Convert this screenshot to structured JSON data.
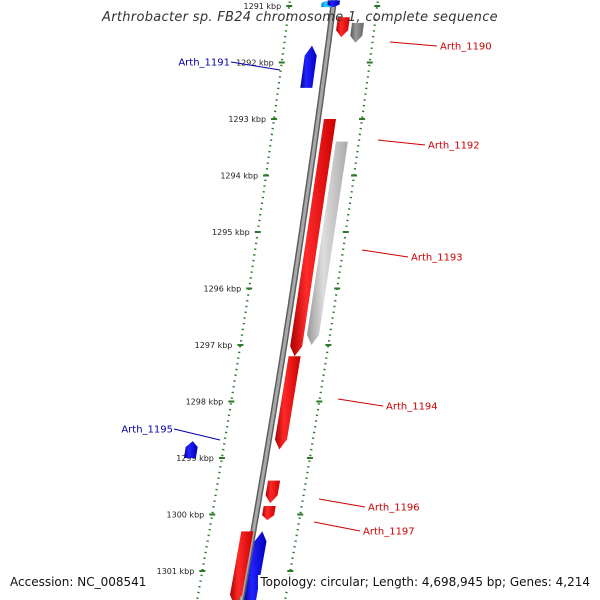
{
  "title": "Arthrobacter sp. FB24 chromosome 1, complete sequence",
  "accession": "Accession: NC_008541",
  "summary": "Topology: circular; Length: 4,698,945 bp; Genes: 4,214",
  "colors": {
    "forward": "#ee0000",
    "reverse": "#0000cc",
    "rna_light": "#bbbbbb",
    "rna_dark": "#777777",
    "tick": "#2a7a2a",
    "backbone": "#888888",
    "forward_label": "#cc0000",
    "reverse_label": "#0000aa"
  },
  "ruler": {
    "ticks": [
      {
        "kbp": 1291,
        "label": "1291 kbp"
      },
      {
        "kbp": 1292,
        "label": "1292 kbp"
      },
      {
        "kbp": 1293,
        "label": "1293 kbp"
      },
      {
        "kbp": 1294,
        "label": "1294 kbp"
      },
      {
        "kbp": 1295,
        "label": "1295 kbp"
      },
      {
        "kbp": 1296,
        "label": "1296 kbp"
      },
      {
        "kbp": 1297,
        "label": "1297 kbp"
      },
      {
        "kbp": 1298,
        "label": "1298 kbp"
      },
      {
        "kbp": 1299,
        "label": "1299 kbp"
      },
      {
        "kbp": 1300,
        "label": "1300 kbp"
      },
      {
        "kbp": 1301,
        "label": "1301 kbp"
      }
    ]
  },
  "genes": [
    {
      "id": "gene-cyan",
      "strand": "reverse",
      "start_kbp": 1290.9,
      "end_kbp": 1291.02,
      "color": "#00aaee",
      "label": ""
    },
    {
      "id": "gene-blue-top",
      "strand": "forward",
      "start_kbp": 1290.9,
      "end_kbp": 1291.02,
      "color": "#0000cc",
      "label": ""
    },
    {
      "id": "arth-1190",
      "strand": "forward",
      "start_kbp": 1291.2,
      "end_kbp": 1291.55,
      "color": "#ee0000",
      "label": "Arth_1190"
    },
    {
      "id": "gene-grey-1",
      "strand": "rna",
      "start_kbp": 1291.3,
      "end_kbp": 1291.65,
      "color": "#777777",
      "label": ""
    },
    {
      "id": "arth-1191",
      "strand": "reverse",
      "start_kbp": 1291.7,
      "end_kbp": 1292.45,
      "color": "#0000cc",
      "label": "Arth_1191"
    },
    {
      "id": "arth-1192",
      "strand": "forward",
      "start_kbp": 1293.0,
      "end_kbp": 1297.2,
      "color": "#ee0000",
      "label": "Arth_1192"
    },
    {
      "id": "arth-1193",
      "strand": "rna",
      "start_kbp": 1293.4,
      "end_kbp": 1297.0,
      "color": "#bbbbbb",
      "label": "Arth_1193"
    },
    {
      "id": "arth-1194",
      "strand": "forward",
      "start_kbp": 1297.2,
      "end_kbp": 1298.85,
      "color": "#ee0000",
      "label": "Arth_1194"
    },
    {
      "id": "arth-1195",
      "strand": "reverse",
      "start_kbp": 1298.7,
      "end_kbp": 1299.0,
      "color": "#0000cc",
      "label": "Arth_1195"
    },
    {
      "id": "arth-1196",
      "strand": "forward",
      "start_kbp": 1299.4,
      "end_kbp": 1299.8,
      "color": "#ee0000",
      "label": "Arth_1196"
    },
    {
      "id": "arth-1197",
      "strand": "forward",
      "start_kbp": 1299.85,
      "end_kbp": 1300.1,
      "color": "#ee0000",
      "label": "Arth_1197"
    },
    {
      "id": "gene-red-bottom",
      "strand": "forward",
      "start_kbp": 1300.3,
      "end_kbp": 1301.6,
      "color": "#ee0000",
      "label": ""
    },
    {
      "id": "gene-blue-bottom",
      "strand": "reverse",
      "start_kbp": 1300.3,
      "end_kbp": 1301.6,
      "color": "#0000cc",
      "label": ""
    }
  ]
}
